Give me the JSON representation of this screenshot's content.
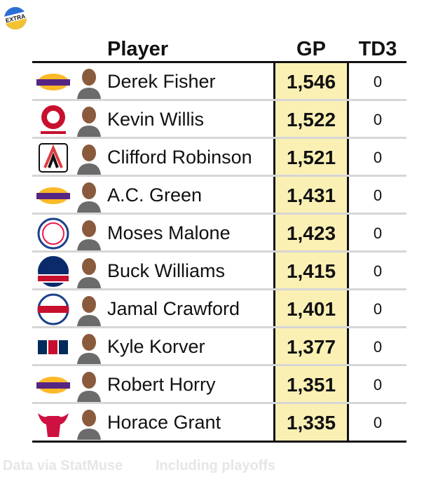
{
  "badge": {
    "label": "EXTRA"
  },
  "chart_data": {
    "type": "table",
    "columns": [
      "Player",
      "GP",
      "TD3"
    ],
    "rows": [
      {
        "player": "Derek Fisher",
        "team_logo": "lakers-logo",
        "gp": 1546,
        "gp_label": "1,546",
        "td3": "0",
        "logo_color": "#552583"
      },
      {
        "player": "Kevin Willis",
        "team_logo": "hawks-logo",
        "gp": 1522,
        "gp_label": "1,522",
        "td3": "0",
        "logo_color": "#c8102e"
      },
      {
        "player": "Clifford Robinson",
        "team_logo": "blazers-logo",
        "gp": 1521,
        "gp_label": "1,521",
        "td3": "0",
        "logo_color": "#e03a3e"
      },
      {
        "player": "A.C. Green",
        "team_logo": "lakers-logo",
        "gp": 1431,
        "gp_label": "1,431",
        "td3": "0",
        "logo_color": "#552583"
      },
      {
        "player": "Moses Malone",
        "team_logo": "76ers-logo",
        "gp": 1423,
        "gp_label": "1,423",
        "td3": "0",
        "logo_color": "#1d428a"
      },
      {
        "player": "Buck Williams",
        "team_logo": "nets-logo",
        "gp": 1415,
        "gp_label": "1,415",
        "td3": "0",
        "logo_color": "#0a2a6b"
      },
      {
        "player": "Jamal Crawford",
        "team_logo": "clippers-logo",
        "gp": 1401,
        "gp_label": "1,401",
        "td3": "0",
        "logo_color": "#c8102e"
      },
      {
        "player": "Kyle Korver",
        "team_logo": "atl-logo",
        "gp": 1377,
        "gp_label": "1,377",
        "td3": "0",
        "logo_color": "#002b5c"
      },
      {
        "player": "Robert Horry",
        "team_logo": "lakers-logo",
        "gp": 1351,
        "gp_label": "1,351",
        "td3": "0",
        "logo_color": "#552583"
      },
      {
        "player": "Horace Grant",
        "team_logo": "bulls-logo",
        "gp": 1335,
        "gp_label": "1,335",
        "td3": "0",
        "logo_color": "#ce1141"
      }
    ],
    "highlight_column": "GP",
    "highlight_color": "#fbf0b4"
  },
  "footer": {
    "source": "Data via StatMuse",
    "note": "Including playoffs"
  }
}
